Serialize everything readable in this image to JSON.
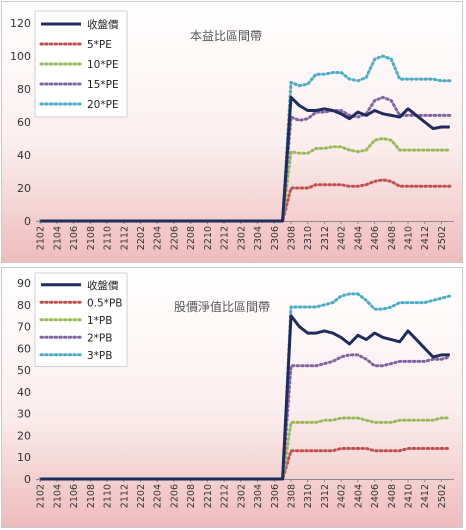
{
  "chart_data": [
    {
      "type": "line",
      "title": "本益比區間帶",
      "xlabel": "",
      "ylabel": "",
      "ylim": [
        0,
        120
      ],
      "yticks": [
        0,
        20,
        40,
        60,
        80,
        100,
        120
      ],
      "grid": false,
      "legend_position": "top-left",
      "x": [
        "2102",
        "2103",
        "2104",
        "2105",
        "2106",
        "2107",
        "2108",
        "2109",
        "2110",
        "2111",
        "2112",
        "2201",
        "2202",
        "2203",
        "2204",
        "2205",
        "2206",
        "2207",
        "2208",
        "2209",
        "2210",
        "2211",
        "2212",
        "2301",
        "2302",
        "2303",
        "2304",
        "2305",
        "2306",
        "2307",
        "2308",
        "2309",
        "2310",
        "2311",
        "2312",
        "2401",
        "2402",
        "2403",
        "2404",
        "2405",
        "2406",
        "2407",
        "2408",
        "2409",
        "2410",
        "2411",
        "2412",
        "2501",
        "2502",
        "2503"
      ],
      "x_tick_labels": [
        "2102",
        "2104",
        "2106",
        "2108",
        "2110",
        "2112",
        "2202",
        "2204",
        "2206",
        "2208",
        "2210",
        "2212",
        "2302",
        "2304",
        "2306",
        "2308",
        "2310",
        "2312",
        "2402",
        "2404",
        "2406",
        "2408",
        "2410",
        "2412",
        "2502"
      ],
      "series": [
        {
          "name": "收盤價",
          "color": "#1f2d5c",
          "style": "solid",
          "values": [
            0,
            0,
            0,
            0,
            0,
            0,
            0,
            0,
            0,
            0,
            0,
            0,
            0,
            0,
            0,
            0,
            0,
            0,
            0,
            0,
            0,
            0,
            0,
            0,
            0,
            0,
            0,
            0,
            0,
            0,
            75,
            70,
            67,
            67,
            68,
            67,
            65,
            62,
            66,
            64,
            67,
            65,
            64,
            63,
            68,
            64,
            60,
            56,
            57,
            57
          ]
        },
        {
          "name": "5*PE",
          "color": "#c0504d",
          "style": "dotted",
          "values": [
            0,
            0,
            0,
            0,
            0,
            0,
            0,
            0,
            0,
            0,
            0,
            0,
            0,
            0,
            0,
            0,
            0,
            0,
            0,
            0,
            0,
            0,
            0,
            0,
            0,
            0,
            0,
            0,
            0,
            0,
            20,
            20,
            20,
            22,
            22,
            22,
            22,
            21,
            21,
            22,
            24,
            25,
            24,
            21,
            21,
            21,
            21,
            21,
            21,
            21
          ]
        },
        {
          "name": "10*PE",
          "color": "#9bbb59",
          "style": "dotted",
          "values": [
            0,
            0,
            0,
            0,
            0,
            0,
            0,
            0,
            0,
            0,
            0,
            0,
            0,
            0,
            0,
            0,
            0,
            0,
            0,
            0,
            0,
            0,
            0,
            0,
            0,
            0,
            0,
            0,
            0,
            0,
            42,
            41,
            41,
            44,
            44,
            45,
            45,
            43,
            42,
            43,
            49,
            50,
            49,
            43,
            43,
            43,
            43,
            43,
            43,
            43
          ]
        },
        {
          "name": "15*PE",
          "color": "#8064a2",
          "style": "dotted",
          "values": [
            0,
            0,
            0,
            0,
            0,
            0,
            0,
            0,
            0,
            0,
            0,
            0,
            0,
            0,
            0,
            0,
            0,
            0,
            0,
            0,
            0,
            0,
            0,
            0,
            0,
            0,
            0,
            0,
            0,
            0,
            63,
            61,
            62,
            66,
            66,
            67,
            67,
            64,
            63,
            65,
            73,
            75,
            73,
            64,
            64,
            64,
            64,
            64,
            64,
            64
          ]
        },
        {
          "name": "20*PE",
          "color": "#4bacc6",
          "style": "dotted",
          "values": [
            0,
            0,
            0,
            0,
            0,
            0,
            0,
            0,
            0,
            0,
            0,
            0,
            0,
            0,
            0,
            0,
            0,
            0,
            0,
            0,
            0,
            0,
            0,
            0,
            0,
            0,
            0,
            0,
            0,
            0,
            84,
            82,
            83,
            89,
            89,
            90,
            90,
            86,
            85,
            87,
            98,
            100,
            98,
            86,
            86,
            86,
            86,
            86,
            85,
            85
          ]
        }
      ]
    },
    {
      "type": "line",
      "title": "股價淨值比區間帶",
      "xlabel": "",
      "ylabel": "",
      "ylim": [
        0,
        90
      ],
      "yticks": [
        0,
        10,
        20,
        30,
        40,
        50,
        60,
        70,
        80,
        90
      ],
      "grid": false,
      "legend_position": "top-left",
      "x": [
        "2102",
        "2103",
        "2104",
        "2105",
        "2106",
        "2107",
        "2108",
        "2109",
        "2110",
        "2111",
        "2112",
        "2201",
        "2202",
        "2203",
        "2204",
        "2205",
        "2206",
        "2207",
        "2208",
        "2209",
        "2210",
        "2211",
        "2212",
        "2301",
        "2302",
        "2303",
        "2304",
        "2305",
        "2306",
        "2307",
        "2308",
        "2309",
        "2310",
        "2311",
        "2312",
        "2401",
        "2402",
        "2403",
        "2404",
        "2405",
        "2406",
        "2407",
        "2408",
        "2409",
        "2410",
        "2411",
        "2412",
        "2501",
        "2502",
        "2503"
      ],
      "x_tick_labels": [
        "2102",
        "2104",
        "2106",
        "2108",
        "2110",
        "2112",
        "2202",
        "2204",
        "2206",
        "2208",
        "2210",
        "2212",
        "2302",
        "2304",
        "2306",
        "2308",
        "2310",
        "2312",
        "2402",
        "2404",
        "2406",
        "2408",
        "2410",
        "2412",
        "2502"
      ],
      "series": [
        {
          "name": "收盤價",
          "color": "#1f2d5c",
          "style": "solid",
          "values": [
            0,
            0,
            0,
            0,
            0,
            0,
            0,
            0,
            0,
            0,
            0,
            0,
            0,
            0,
            0,
            0,
            0,
            0,
            0,
            0,
            0,
            0,
            0,
            0,
            0,
            0,
            0,
            0,
            0,
            0,
            75,
            70,
            67,
            67,
            68,
            67,
            65,
            62,
            66,
            64,
            67,
            65,
            64,
            63,
            68,
            64,
            60,
            56,
            57,
            57
          ]
        },
        {
          "name": "0.5*PB",
          "color": "#c0504d",
          "style": "dotted",
          "values": [
            0,
            0,
            0,
            0,
            0,
            0,
            0,
            0,
            0,
            0,
            0,
            0,
            0,
            0,
            0,
            0,
            0,
            0,
            0,
            0,
            0,
            0,
            0,
            0,
            0,
            0,
            0,
            0,
            0,
            0,
            13,
            13,
            13,
            13,
            13,
            13,
            14,
            14,
            14,
            14,
            13,
            13,
            13,
            13,
            14,
            14,
            14,
            14,
            14,
            14
          ]
        },
        {
          "name": "1*PB",
          "color": "#9bbb59",
          "style": "dotted",
          "values": [
            0,
            0,
            0,
            0,
            0,
            0,
            0,
            0,
            0,
            0,
            0,
            0,
            0,
            0,
            0,
            0,
            0,
            0,
            0,
            0,
            0,
            0,
            0,
            0,
            0,
            0,
            0,
            0,
            0,
            0,
            26,
            26,
            26,
            26,
            27,
            27,
            28,
            28,
            28,
            27,
            26,
            26,
            26,
            27,
            27,
            27,
            27,
            27,
            28,
            28
          ]
        },
        {
          "name": "2*PB",
          "color": "#8064a2",
          "style": "dotted",
          "values": [
            0,
            0,
            0,
            0,
            0,
            0,
            0,
            0,
            0,
            0,
            0,
            0,
            0,
            0,
            0,
            0,
            0,
            0,
            0,
            0,
            0,
            0,
            0,
            0,
            0,
            0,
            0,
            0,
            0,
            0,
            52,
            52,
            52,
            52,
            53,
            54,
            56,
            57,
            57,
            55,
            52,
            52,
            53,
            54,
            54,
            54,
            54,
            55,
            55,
            56
          ]
        },
        {
          "name": "3*PB",
          "color": "#4bacc6",
          "style": "dotted",
          "values": [
            0,
            0,
            0,
            0,
            0,
            0,
            0,
            0,
            0,
            0,
            0,
            0,
            0,
            0,
            0,
            0,
            0,
            0,
            0,
            0,
            0,
            0,
            0,
            0,
            0,
            0,
            0,
            0,
            0,
            0,
            79,
            79,
            79,
            79,
            80,
            81,
            84,
            85,
            85,
            82,
            78,
            78,
            79,
            81,
            81,
            81,
            81,
            82,
            83,
            84
          ]
        }
      ]
    }
  ]
}
